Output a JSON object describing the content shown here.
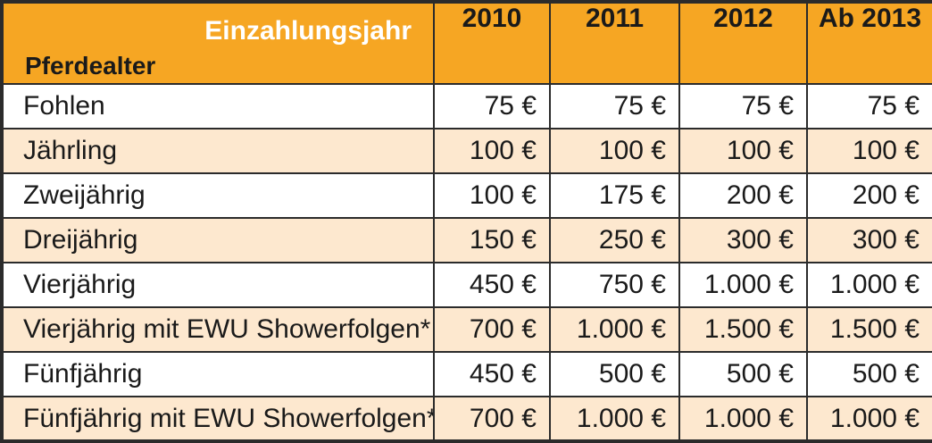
{
  "header": {
    "corner_top": "Einzahlungsjahr",
    "corner_bottom": "Pferdealter",
    "years": [
      "2010",
      "2011",
      "2012",
      "Ab 2013"
    ]
  },
  "colors": {
    "header_bg": "#f6a623",
    "stripe_bg": "#fde8cf",
    "border": "#2b2b2b"
  },
  "rows": [
    {
      "label": "Fohlen",
      "values": [
        "75 €",
        "75 €",
        "75 €",
        "75 €"
      ]
    },
    {
      "label": "Jährling",
      "values": [
        "100 €",
        "100 €",
        "100 €",
        "100 €"
      ]
    },
    {
      "label": "Zweijährig",
      "values": [
        "100 €",
        "175 €",
        "200 €",
        "200 €"
      ]
    },
    {
      "label": "Dreijährig",
      "values": [
        "150 €",
        "250 €",
        "300 €",
        "300 €"
      ]
    },
    {
      "label": "Vierjährig",
      "values": [
        "450 €",
        "750 €",
        "1.000 €",
        "1.000 €"
      ]
    },
    {
      "label": "Vierjährig mit EWU Showerfolgen*",
      "values": [
        "700 €",
        "1.000 €",
        "1.500 €",
        "1.500 €"
      ]
    },
    {
      "label": "Fünfjährig",
      "values": [
        "450 €",
        "500 €",
        "500 €",
        "500 €"
      ]
    },
    {
      "label": "Fünfjährig mit EWU Showerfolgen*",
      "values": [
        "700 €",
        "1.000 €",
        "1.000 €",
        "1.000 €"
      ]
    }
  ]
}
